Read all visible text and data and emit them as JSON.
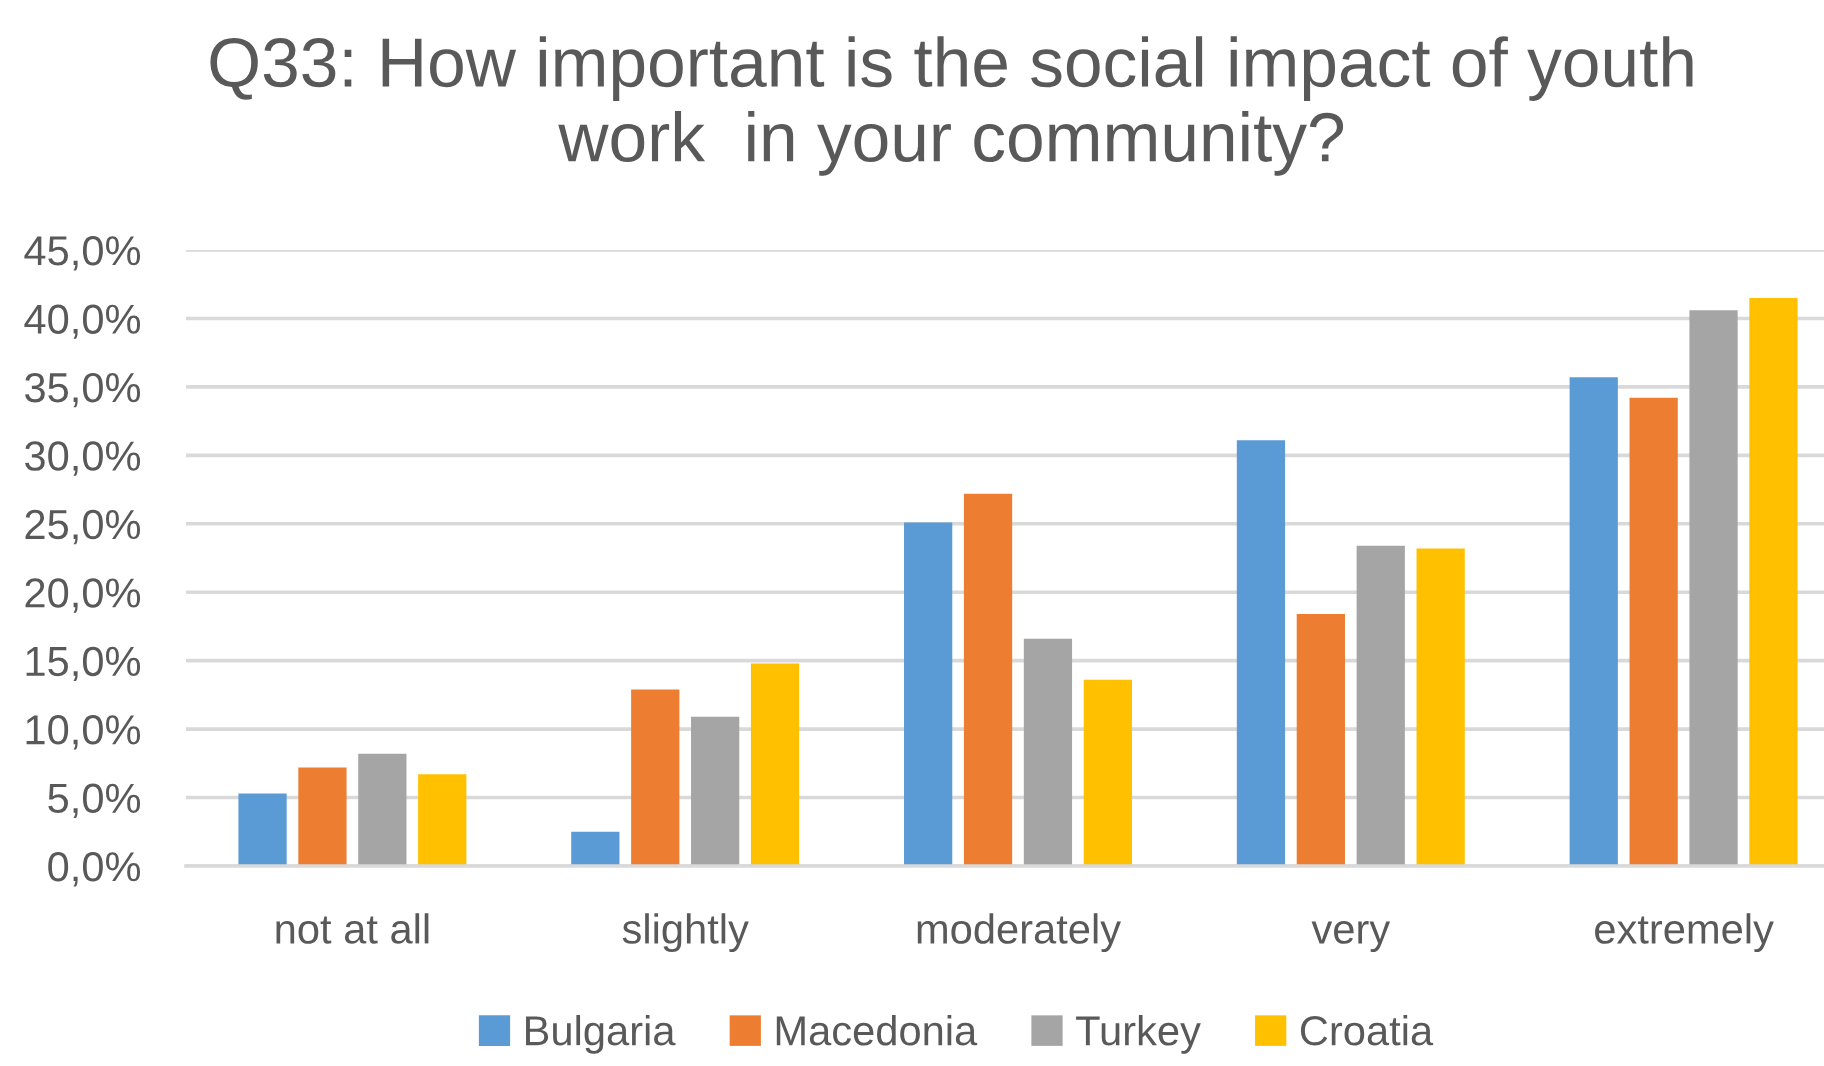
{
  "chart_data": {
    "type": "bar",
    "title": "Q33: How important is the social impact of youth\nwork  in your community?",
    "categories": [
      "not at all",
      "slightly",
      "moderately",
      "very",
      "extremely"
    ],
    "series": [
      {
        "name": "Bulgaria",
        "color": "#5b9bd5",
        "values": [
          5.3,
          2.5,
          25.1,
          31.1,
          35.7
        ]
      },
      {
        "name": "Macedonia",
        "color": "#ed7d31",
        "values": [
          7.2,
          12.9,
          27.2,
          18.4,
          34.2
        ]
      },
      {
        "name": "Turkey",
        "color": "#a5a5a5",
        "values": [
          8.2,
          10.9,
          16.6,
          23.4,
          40.6
        ]
      },
      {
        "name": "Croatia",
        "color": "#ffc000",
        "values": [
          6.7,
          14.8,
          13.6,
          23.2,
          41.5
        ]
      }
    ],
    "ylim": [
      0,
      45
    ],
    "yticks": [
      {
        "value": 0,
        "label": "0,0%"
      },
      {
        "value": 5,
        "label": "5,0%"
      },
      {
        "value": 10,
        "label": "10,0%"
      },
      {
        "value": 15,
        "label": "15,0%"
      },
      {
        "value": 20,
        "label": "20,0%"
      },
      {
        "value": 25,
        "label": "25,0%"
      },
      {
        "value": 30,
        "label": "30,0%"
      },
      {
        "value": 35,
        "label": "35,0%"
      },
      {
        "value": 40,
        "label": "40,0%"
      },
      {
        "value": 45,
        "label": "45,0%"
      }
    ],
    "grid": "y",
    "legend": "bottom"
  }
}
